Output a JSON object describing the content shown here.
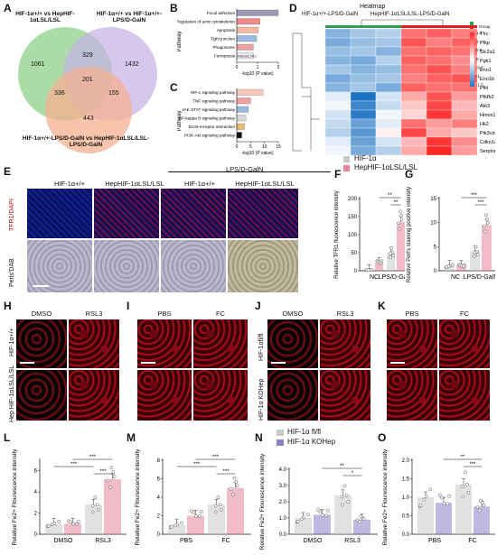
{
  "panels": {
    "A": "A",
    "B": "B",
    "C": "C",
    "D": "D",
    "E": "E",
    "F": "F",
    "G": "G",
    "H": "H",
    "I": "I",
    "J": "J",
    "K": "K",
    "L": "L",
    "M": "M",
    "N": "N",
    "O": "O"
  },
  "venn": {
    "set1": "HIF-1α+/+ vs HepHIF-1αLSL/LSL",
    "set2": "HIF-1α+/+ vs HIF-1α+/+-LPS/D-GalN",
    "set3": "HIF-1α+/+-LPS/D-GalN vs HepHIF-1αLSL/LSL-LPS/D-GalN",
    "n": {
      "only1": "1061",
      "only2": "1432",
      "only3": "443",
      "s12": "329",
      "s13": "336",
      "s23": "155",
      "all": "201"
    }
  },
  "panelB": {
    "ylabel": "Pathway",
    "xlabel": "-log10 (P value)",
    "items": [
      "Focal adhesion",
      "Regulation of actin cytoskeleton",
      "Apoptosis",
      "Tight junction",
      "Phagosome",
      "Ferroptosis"
    ],
    "inbar": "Hmox1,Tfrc",
    "values": [
      2.5,
      1.4,
      1.3,
      1.2,
      1.0,
      1.0
    ],
    "colors": [
      "#9a9ab8",
      "#f08a8a",
      "#f5b8a0",
      "#9ab8e0",
      "#e8a0a0",
      "#e8e8f0"
    ],
    "ticks": [
      "0",
      "1",
      "2"
    ]
  },
  "panelC": {
    "ylabel": "Pathway",
    "xlabel": "-log10 (P value)",
    "items": [
      "HIF-1 signaling pathway",
      "TNF signaling pathway",
      "JAK-STAT signaling pathway",
      "NF-kappa B signaling pathway",
      "ECM-receptor interaction",
      "PI3K-Akt signaling pathway"
    ],
    "values": [
      9.5,
      5.0,
      4.2,
      3.3,
      2.8,
      1.8
    ],
    "colors": [
      "#f5c8b8",
      "#f0a0a0",
      "#9ab8e0",
      "#d8d8d8",
      "#e8b870",
      "#111111"
    ],
    "ticks": [
      "0",
      "5",
      "10",
      "15"
    ]
  },
  "heatmap": {
    "title": "Heatmap",
    "group_header": "HIF-1α+/+-LPS/D-GalN",
    "group_header2": "HepHIF-1αLSL/LSL-LPS/D-GalN",
    "group_label": "Group",
    "genes": [
      "Tfrc",
      "Pfkp",
      "Slc2a1",
      "Pgk1",
      "Eno1",
      "Eno1b",
      "Pfkl",
      "Pfkfb3",
      "Akt3",
      "Hmox1",
      "Hk2",
      "Pik3cd",
      "Cdkn1a",
      "Serpine1"
    ],
    "legend_ticks": [
      "1.5",
      "1",
      "0.5",
      "0",
      "-0.5",
      "-1",
      "-1.5"
    ],
    "values": [
      [
        -0.8,
        -0.6,
        -0.5,
        1.0,
        1.1,
        0.9
      ],
      [
        -0.9,
        -0.7,
        -0.6,
        1.2,
        0.9,
        1.1
      ],
      [
        -0.7,
        -0.6,
        -0.8,
        1.0,
        1.1,
        1.0
      ],
      [
        -0.8,
        -0.9,
        -0.5,
        1.1,
        1.0,
        0.8
      ],
      [
        -0.6,
        -0.8,
        -0.7,
        1.0,
        1.2,
        0.9
      ],
      [
        -0.9,
        -0.7,
        -0.6,
        0.9,
        1.1,
        1.2
      ],
      [
        -0.8,
        -0.6,
        -0.9,
        1.1,
        1.0,
        1.0
      ],
      [
        -0.2,
        -1.5,
        -0.3,
        0.6,
        1.2,
        0.7
      ],
      [
        -0.1,
        -1.3,
        -0.4,
        0.4,
        1.3,
        0.5
      ],
      [
        -0.3,
        -1.4,
        -0.1,
        0.3,
        1.4,
        0.6
      ],
      [
        -0.4,
        -1.0,
        -0.2,
        1.0,
        0.7,
        0.9
      ],
      [
        -0.5,
        -1.1,
        0.1,
        1.3,
        0.6,
        0.4
      ],
      [
        -0.2,
        -1.0,
        -0.3,
        0.5,
        1.4,
        0.8
      ],
      [
        -0.1,
        -0.9,
        -0.5,
        0.6,
        1.5,
        0.7
      ]
    ]
  },
  "panelE": {
    "lps": "LPS/D-GalN",
    "cols": [
      "HIF-1α+/+",
      "HepHIF-1αLSL/LSL",
      "HIF-1α+/+",
      "HepHIF-1αLSL/LSL"
    ],
    "row1": "TFR1/DAPI",
    "row2": "Perls'DAB"
  },
  "legendFG": {
    "a": "HIF-1α",
    "b": "HepHIF-1αLSL/LSL",
    "colorA": "#c8c8c8",
    "colorB": "#e8849a"
  },
  "panelF": {
    "ylabel": "Relative TFR1 fluorescence intensity",
    "groups": [
      "NC",
      "LPS/D-GalN"
    ],
    "ticks": [
      "0",
      "50",
      "100",
      "150",
      "200"
    ],
    "ymax": 200,
    "means": [
      2,
      22,
      50,
      135
    ],
    "sig": [
      "**",
      "**"
    ]
  },
  "panelG": {
    "ylabel": "Relative Perl's staining positive intensity",
    "groups": [
      "NC",
      "LPS/D-GalN"
    ],
    "ticks": [
      "0",
      "5",
      "10",
      "15"
    ],
    "ymax": 15,
    "means": [
      1.0,
      1.0,
      4.0,
      9.5
    ],
    "sig": [
      "***",
      "***"
    ]
  },
  "panelH": {
    "cols": [
      "DMSO",
      "RSL3"
    ],
    "rows": [
      "HIF-1α+/+",
      "Hep HIF-1αLSL/LSL"
    ]
  },
  "panelI": {
    "cols": [
      "PBS",
      "FC"
    ]
  },
  "panelJ": {
    "cols": [
      "DMSO",
      "RSL3"
    ],
    "rows": [
      "HIF-1αfl/fl",
      "HIF-1α KOHep"
    ]
  },
  "panelK": {
    "cols": [
      "PBS",
      "FC"
    ]
  },
  "legendNO": {
    "a": "HIF-1α fl/fl",
    "b": "HIF-1α KOHep",
    "colorA": "#c8c8c8",
    "colorB": "#8b7fc8"
  },
  "panelL": {
    "ylabel": "Relative Fe2+ Flourescence intensity",
    "groups": [
      "DMSO",
      "RSL3"
    ],
    "ticks": [
      "0",
      "2",
      "4",
      "6"
    ],
    "ymax": 7,
    "means": [
      1.0,
      1.0,
      2.8,
      5.2
    ],
    "sig": [
      "***",
      "***",
      "***"
    ]
  },
  "panelM": {
    "ylabel": "Relative Fe2+ Flourescence intensity",
    "groups": [
      "PBS",
      "FC"
    ],
    "ticks": [
      "0",
      "2",
      "4",
      "6",
      "8"
    ],
    "ymax": 8,
    "means": [
      1.0,
      2.0,
      3.2,
      5.0
    ],
    "sig": [
      "***",
      "***",
      "***"
    ]
  },
  "panelN": {
    "ylabel": "Relative Fe2+ Flourescence intensity",
    "groups": [
      "DMSO",
      "RSL3"
    ],
    "ticks": [
      "0.0",
      "1.0",
      "2.0",
      "3.0",
      "4.0"
    ],
    "ymax": 4,
    "means": [
      1.0,
      1.2,
      2.4,
      0.9
    ],
    "sig": [
      "**",
      "*"
    ]
  },
  "panelO": {
    "ylabel": "Relative Fe2+ Flourescence intensity",
    "groups": [
      "PBS",
      "FC"
    ],
    "ticks": [
      "0.0",
      "0.5",
      "1.0",
      "1.5",
      "2.0"
    ],
    "ymax": 2,
    "means": [
      1.0,
      0.85,
      1.35,
      0.75
    ],
    "sig": [
      "**",
      "***"
    ]
  }
}
